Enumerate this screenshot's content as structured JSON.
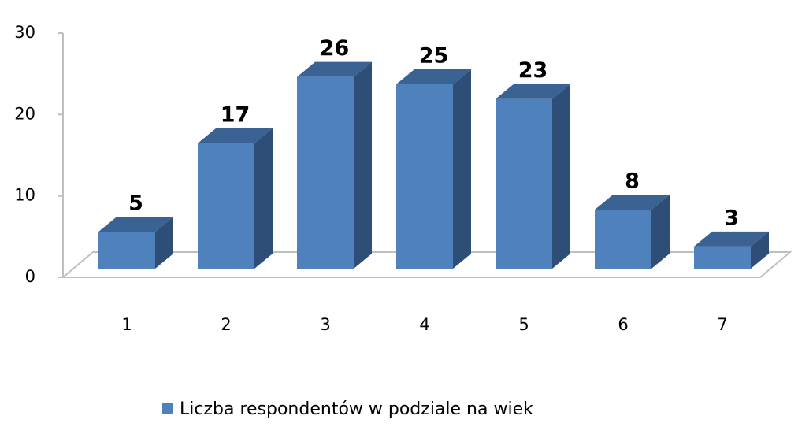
{
  "chart_data": {
    "type": "bar3d",
    "categories": [
      "1",
      "2",
      "3",
      "4",
      "5",
      "6",
      "7"
    ],
    "series": [
      {
        "name": "Liczba respondentów w podziale na wiek",
        "color": "#4f81bd",
        "values": [
          5,
          17,
          26,
          25,
          23,
          8,
          3
        ]
      }
    ],
    "ylim": [
      0,
      30
    ],
    "yticks": [
      0,
      10,
      20,
      30
    ],
    "legend": "bottom"
  }
}
